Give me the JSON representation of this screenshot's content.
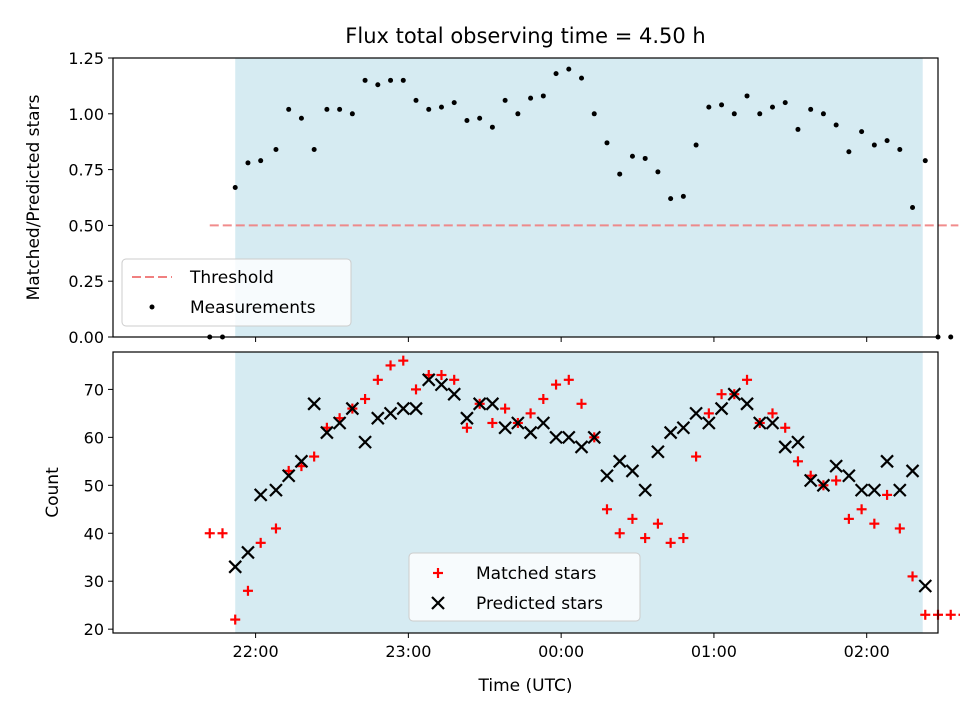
{
  "chart_data": [
    {
      "type": "scatter",
      "title": "Flux total observing time = 4.50 h",
      "xlabel": "",
      "ylabel": "Matched/Predicted stars",
      "ylim": [
        0,
        1.25
      ],
      "yticks": [
        "0.00",
        "0.25",
        "0.50",
        "0.75",
        "1.00",
        "1.25"
      ],
      "ytick_values": [
        0,
        0.25,
        0.5,
        0.75,
        1.0,
        1.25
      ],
      "xlim_minutes": [
        -56,
        268
      ],
      "xtick_minutes": [
        0,
        60,
        120,
        180,
        240
      ],
      "shaded_span_minutes": [
        -8,
        262
      ],
      "shade_color": "#add8e6",
      "threshold": {
        "name": "Threshold",
        "y": 0.5,
        "x_range_minutes": [
          -18,
          276
        ],
        "color": "#f08080"
      },
      "legend": [
        "Threshold",
        "Measurements"
      ],
      "legend_location": "lower left",
      "series": [
        {
          "name": "Measurements",
          "color": "#000000",
          "marker": "dot",
          "x_minutes": [
            -18,
            -13,
            -8,
            -3,
            2,
            8,
            13,
            18,
            23,
            28,
            33,
            38,
            43,
            48,
            53,
            58,
            63,
            68,
            73,
            78,
            83,
            88,
            93,
            98,
            103,
            108,
            113,
            118,
            123,
            128,
            133,
            138,
            143,
            148,
            153,
            158,
            163,
            168,
            173,
            178,
            183,
            188,
            193,
            198,
            203,
            208,
            213,
            218,
            223,
            228,
            233,
            238,
            243,
            248,
            253,
            258,
            263,
            268,
            273,
            278
          ],
          "y": [
            0,
            0,
            0.67,
            0.78,
            0.79,
            0.84,
            1.02,
            0.98,
            0.84,
            1.02,
            1.02,
            1.0,
            1.15,
            1.13,
            1.15,
            1.15,
            1.06,
            1.02,
            1.03,
            1.05,
            0.97,
            0.98,
            0.94,
            1.06,
            1.0,
            1.07,
            1.08,
            1.18,
            1.2,
            1.16,
            1.0,
            0.87,
            0.73,
            0.81,
            0.8,
            0.74,
            0.62,
            0.63,
            0.86,
            1.03,
            1.04,
            1.0,
            1.08,
            1.0,
            1.03,
            1.05,
            0.93,
            1.02,
            1.0,
            0.95,
            0.83,
            0.92,
            0.86,
            0.88,
            0.84,
            0.58,
            0.79,
            0,
            0,
            0
          ]
        }
      ]
    },
    {
      "type": "scatter",
      "title": "",
      "xlabel": "Time (UTC)",
      "ylabel": "Count",
      "ylim": [
        19.2,
        77.8
      ],
      "yticks": [
        "20",
        "30",
        "40",
        "50",
        "60",
        "70"
      ],
      "ytick_values": [
        20,
        30,
        40,
        50,
        60,
        70
      ],
      "xlim_minutes": [
        -56,
        268
      ],
      "xticks": [
        "22:00",
        "23:00",
        "00:00",
        "01:00",
        "02:00"
      ],
      "xtick_minutes": [
        0,
        60,
        120,
        180,
        240
      ],
      "shaded_span_minutes": [
        -8,
        262
      ],
      "shade_color": "#add8e6",
      "legend": [
        "Matched stars",
        "Predicted stars"
      ],
      "legend_location": "lower center",
      "series": [
        {
          "name": "Matched stars",
          "color": "#ff0000",
          "marker": "plus",
          "x_minutes": [
            -18,
            -13,
            -8,
            -3,
            2,
            8,
            13,
            18,
            23,
            28,
            33,
            38,
            43,
            48,
            53,
            58,
            63,
            68,
            73,
            78,
            83,
            88,
            93,
            98,
            103,
            108,
            113,
            118,
            123,
            128,
            133,
            138,
            143,
            148,
            153,
            158,
            163,
            168,
            173,
            178,
            183,
            188,
            193,
            198,
            203,
            208,
            213,
            218,
            223,
            228,
            233,
            238,
            243,
            248,
            253,
            258,
            263,
            268,
            273,
            278
          ],
          "y": [
            40,
            40,
            22,
            28,
            38,
            41,
            53,
            54,
            56,
            62,
            64,
            66,
            68,
            72,
            75,
            76,
            70,
            73,
            73,
            72,
            62,
            67,
            63,
            66,
            63,
            65,
            68,
            71,
            72,
            67,
            60,
            45,
            40,
            43,
            39,
            42,
            38,
            39,
            56,
            65,
            69,
            69,
            72,
            63,
            65,
            62,
            55,
            52,
            50,
            51,
            43,
            45,
            42,
            48,
            41,
            31,
            23,
            23,
            23,
            23
          ]
        },
        {
          "name": "Predicted stars",
          "color": "#000000",
          "marker": "x",
          "x_minutes": [
            -8,
            -3,
            2,
            8,
            13,
            18,
            23,
            28,
            33,
            38,
            43,
            48,
            53,
            58,
            63,
            68,
            73,
            78,
            83,
            88,
            93,
            98,
            103,
            108,
            113,
            118,
            123,
            128,
            133,
            138,
            143,
            148,
            153,
            158,
            163,
            168,
            173,
            178,
            183,
            188,
            193,
            198,
            203,
            208,
            213,
            218,
            223,
            228,
            233,
            238,
            243,
            248,
            253,
            258,
            263
          ],
          "y": [
            33,
            36,
            48,
            49,
            52,
            55,
            67,
            61,
            63,
            66,
            59,
            64,
            65,
            66,
            66,
            72,
            71,
            69,
            64,
            67,
            67,
            62,
            63,
            61,
            63,
            60,
            60,
            58,
            60,
            52,
            55,
            53,
            49,
            57,
            61,
            62,
            65,
            63,
            66,
            69,
            67,
            63,
            63,
            58,
            59,
            51,
            50,
            54,
            52,
            49,
            49,
            55,
            49,
            53,
            29
          ]
        }
      ]
    }
  ]
}
